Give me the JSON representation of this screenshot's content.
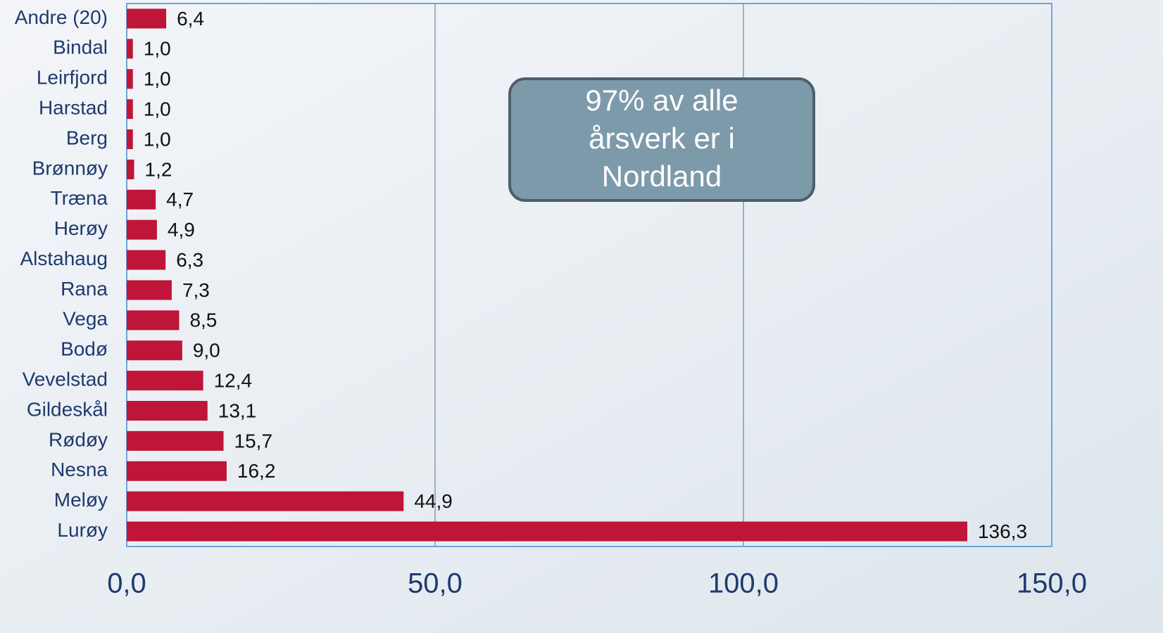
{
  "chart_data": {
    "type": "bar",
    "orientation": "horizontal",
    "categories": [
      "Andre (20)",
      "Bindal",
      "Leirfjord",
      "Harstad",
      "Berg",
      "Brønnøy",
      "Træna",
      "Herøy",
      "Alstahaug",
      "Rana",
      "Vega",
      "Bodø",
      "Vevelstad",
      "Gildeskål",
      "Rødøy",
      "Nesna",
      "Meløy",
      "Lurøy"
    ],
    "values": [
      6.4,
      1.0,
      1.0,
      1.0,
      1.0,
      1.2,
      4.7,
      4.9,
      6.3,
      7.3,
      8.5,
      9.0,
      12.4,
      13.1,
      15.7,
      16.2,
      44.9,
      136.3
    ],
    "value_labels": [
      "6,4",
      "1,0",
      "1,0",
      "1,0",
      "1,0",
      "1,2",
      "4,7",
      "4,9",
      "6,3",
      "7,3",
      "8,5",
      "9,0",
      "12,4",
      "13,1",
      "15,7",
      "16,2",
      "44,9",
      "136,3"
    ],
    "color": "#be1538",
    "xlim": [
      0,
      150
    ],
    "xticks": [
      {
        "value": 0,
        "label": "0,0"
      },
      {
        "value": 50,
        "label": "50,0"
      },
      {
        "value": 100,
        "label": "100,0"
      },
      {
        "value": 150,
        "label": "150,0"
      }
    ],
    "grid": true,
    "annotation": [
      "97% av alle",
      "årsverk er i",
      "Nordland"
    ]
  }
}
